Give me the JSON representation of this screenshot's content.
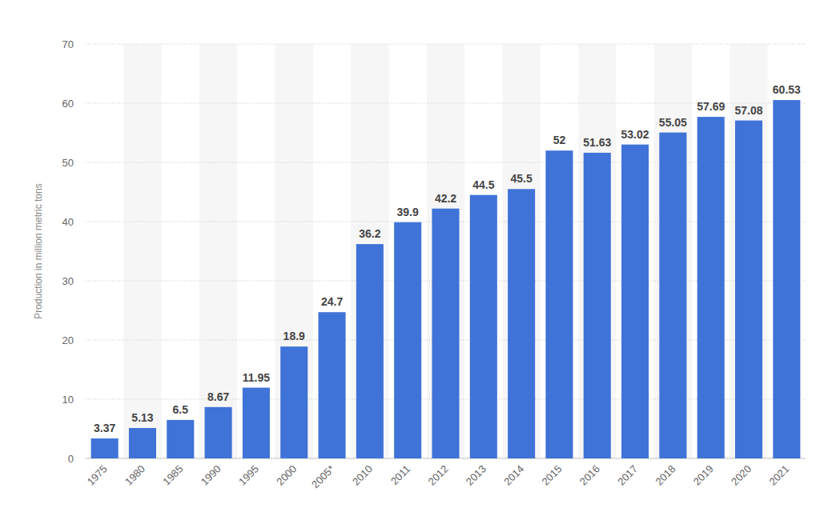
{
  "chart_data": {
    "type": "bar",
    "y_label": "Production in million metric tons",
    "categories": [
      "1975",
      "1980",
      "1985",
      "1990",
      "1995",
      "2000",
      "2005*",
      "2010",
      "2011",
      "2012",
      "2013",
      "2014",
      "2015",
      "2016",
      "2017",
      "2018",
      "2019",
      "2020",
      "2021"
    ],
    "values": [
      3.37,
      5.13,
      6.5,
      8.67,
      11.95,
      18.9,
      24.7,
      36.2,
      39.9,
      42.2,
      44.5,
      45.5,
      52,
      51.63,
      53.02,
      55.05,
      57.69,
      57.08,
      60.53
    ],
    "color": "#3f73d7",
    "ylim": [
      0,
      70
    ],
    "yticks": [
      0,
      10,
      20,
      30,
      40,
      50,
      60,
      70
    ],
    "grid": true,
    "data_labels": true
  }
}
